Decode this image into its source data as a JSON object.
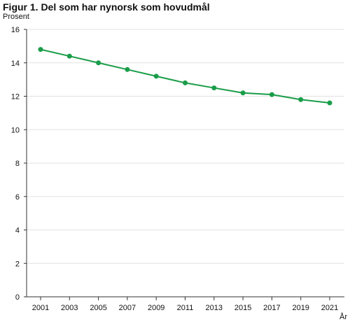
{
  "chart_data": {
    "type": "line",
    "title": "Figur 1. Del som har nynorsk som hovudmål",
    "ylabel": "Prosent",
    "xlabel": "År",
    "x": [
      2001,
      2003,
      2005,
      2007,
      2009,
      2011,
      2013,
      2015,
      2017,
      2019,
      2021
    ],
    "y_ticks": [
      0,
      2,
      4,
      6,
      8,
      10,
      12,
      14,
      16
    ],
    "ylim": [
      0,
      16
    ],
    "grid": true,
    "series": [
      {
        "color": "#1a9d49",
        "values": [
          14.8,
          14.4,
          14.0,
          13.6,
          13.2,
          12.8,
          12.5,
          12.2,
          12.1,
          11.8,
          11.6
        ]
      }
    ]
  }
}
